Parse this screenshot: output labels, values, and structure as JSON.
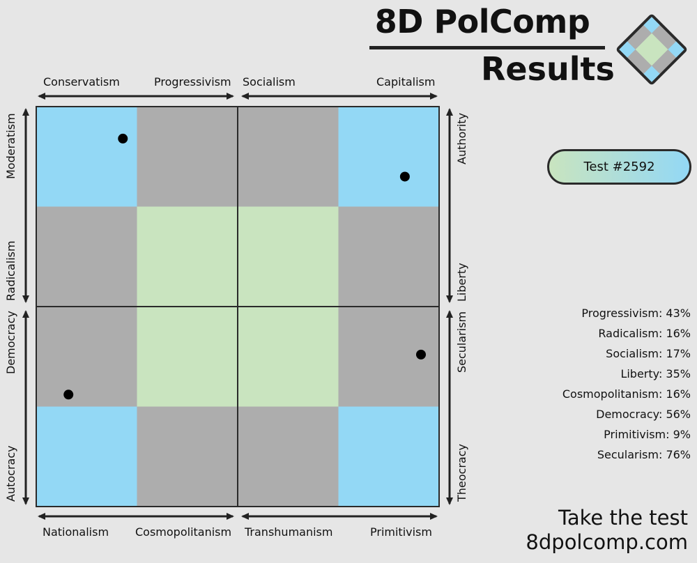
{
  "header": {
    "title_line1": "8D PolComp",
    "title_line2": "Results"
  },
  "badge": {
    "label": "Test #2592"
  },
  "axes": {
    "top": [
      "Conservatism",
      "Progressivism",
      "Socialism",
      "Capitalism"
    ],
    "bottom": [
      "Nationalism",
      "Cosmopolitanism",
      "Transhumanism",
      "Primitivism"
    ],
    "left": [
      "Moderatism",
      "Radicalism",
      "Democracy",
      "Autocracy"
    ],
    "right": [
      "Authority",
      "Liberty",
      "Secularism",
      "Theocracy"
    ]
  },
  "scores": [
    "Progressivism: 43%",
    "Radicalism: 16%",
    "Socialism: 17%",
    "Liberty: 35%",
    "Cosmopolitanism: 16%",
    "Democracy: 56%",
    "Primitivism: 9%",
    "Secularism: 76%"
  ],
  "footer": {
    "line1": "Take the test",
    "line2": "8dpolcomp.com"
  },
  "colors": {
    "blue": "#93d8f5",
    "gray": "#adadad",
    "green": "#c9e4bf",
    "border": "#2a2a2a"
  },
  "chart_data": {
    "type": "scatter",
    "grid_pattern": [
      [
        "blue",
        "gray",
        "gray",
        "blue"
      ],
      [
        "gray",
        "green",
        "green",
        "gray"
      ],
      [
        "gray",
        "green",
        "green",
        "gray"
      ],
      [
        "blue",
        "gray",
        "gray",
        "blue"
      ]
    ],
    "quadrants": [
      {
        "x_axis": "Progressivism",
        "x": 43,
        "y_axis": "Radicalism",
        "y": 16
      },
      {
        "x_axis": "Socialism",
        "x": 17,
        "y_axis": "Liberty",
        "y": 35
      },
      {
        "x_axis": "Cosmopolitanism",
        "x": 16,
        "y_axis": "Democracy",
        "y": 56
      },
      {
        "x_axis": "Primitivism",
        "x": 9,
        "y_axis": "Secularism",
        "y": 76
      }
    ]
  }
}
